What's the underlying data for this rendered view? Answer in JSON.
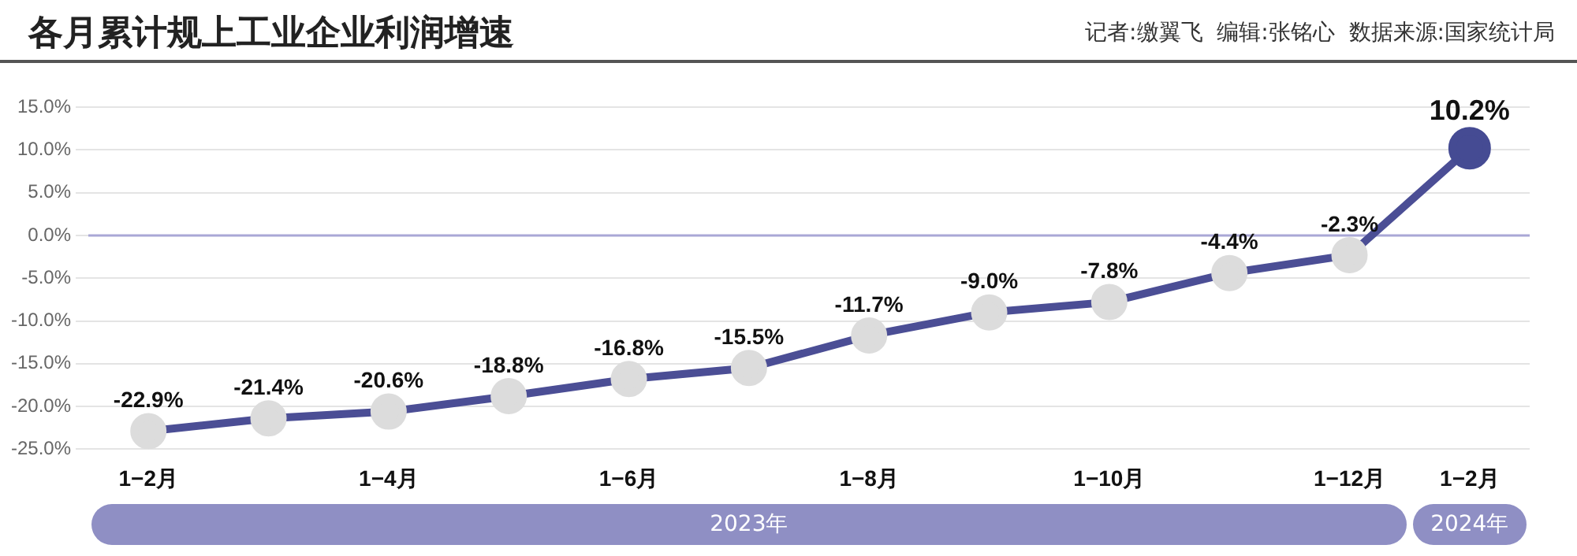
{
  "chart_data": {
    "type": "line",
    "title": "各月累计规上工业企业利润增速",
    "annotations": [
      "记者:缴翼飞  编辑:张铭心  数据来源:国家统计局",
      "2023年",
      "2024年"
    ],
    "categories": [
      "1−2月",
      null,
      "1−4月",
      null,
      "1−6月",
      null,
      "1−8月",
      null,
      "1−10月",
      null,
      "1−12月",
      "1−2月"
    ],
    "series": [
      {
        "color": "#4b4e95",
        "colors": [
          "#dcdcdc",
          "#dcdcdc",
          "#dcdcdc",
          "#dcdcdc",
          "#dcdcdc",
          "#dcdcdc",
          "#dcdcdc",
          "#dcdcdc",
          "#dcdcdc",
          "#dcdcdc",
          "#dcdcdc",
          "#454b93"
        ],
        "values": [
          -22.9,
          -21.4,
          -20.6,
          -18.8,
          -16.8,
          -15.5,
          -11.7,
          -9.0,
          -7.8,
          -4.4,
          -2.3,
          10.2
        ],
        "value_labels": [
          "-22.9%",
          "-21.4%",
          "-20.6%",
          "-18.8%",
          "-16.8%",
          "-15.5%",
          "-11.7%",
          "-9.0%",
          "-7.8%",
          "-4.4%",
          "-2.3%",
          "10.2%"
        ]
      }
    ],
    "ylim": [
      -25,
      15
    ],
    "yticks": [
      {
        "value": -25,
        "label": "-25.0%"
      },
      {
        "value": -20,
        "label": "-20.0%"
      },
      {
        "value": -15,
        "label": "-15.0%"
      },
      {
        "value": -10,
        "label": "-10.0%"
      },
      {
        "value": -5,
        "label": "-5.0%"
      },
      {
        "value": 0,
        "label": "0.0%"
      },
      {
        "value": 5,
        "label": "5.0%"
      },
      {
        "value": 10,
        "label": "10.0%"
      },
      {
        "value": 15,
        "label": "15.0%"
      }
    ],
    "ref_lines": [
      {
        "axis": "y",
        "value": 0,
        "color": "#a9a7d6"
      }
    ],
    "grid": "y",
    "marker": "circle",
    "line_style": "solid",
    "legend": false
  }
}
